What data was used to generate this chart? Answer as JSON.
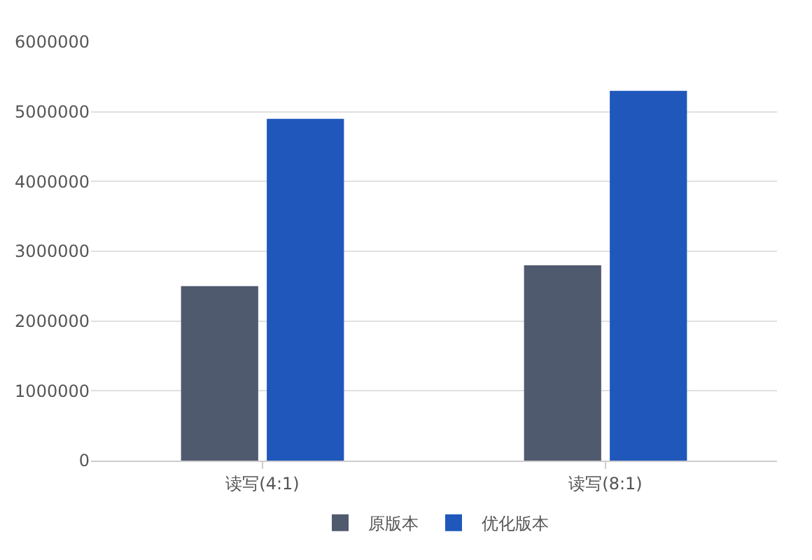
{
  "chart_data": {
    "type": "bar",
    "categories": [
      "读写(4:1)",
      "读写(8:1)"
    ],
    "series": [
      {
        "name": "原版本",
        "color": "#505a6e",
        "values": [
          2500000,
          2800000
        ]
      },
      {
        "name": "优化版本",
        "color": "#1f57bb",
        "values": [
          4900000,
          5300000
        ]
      }
    ],
    "ylim": [
      0,
      6000000
    ],
    "yticks": [
      0,
      1000000,
      2000000,
      3000000,
      4000000,
      5000000,
      6000000
    ],
    "grid": "y",
    "legend": "bottom"
  }
}
